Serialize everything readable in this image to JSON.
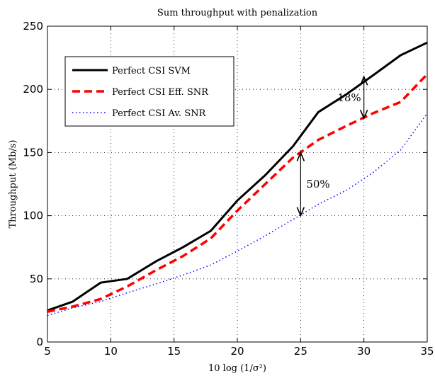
{
  "chart_data": {
    "type": "line",
    "title": "Sum throughput with penalization",
    "xlabel": "10 log (1/σ²)",
    "ylabel": "Throughput (Mb/s)",
    "xlim": [
      5,
      35
    ],
    "ylim": [
      0,
      250
    ],
    "xticks": [
      5,
      10,
      15,
      20,
      25,
      30,
      35
    ],
    "yticks": [
      0,
      50,
      100,
      150,
      200,
      250
    ],
    "grid": true,
    "legend_position": "top-left",
    "series": [
      {
        "name": "Perfect CSI SVM",
        "color": "#000000",
        "style": "solid",
        "x": [
          5,
          7,
          9.2,
          11.3,
          13.6,
          15.7,
          17.9,
          20,
          22.2,
          24.4,
          26.4,
          28.6,
          30.7,
          32.9,
          35
        ],
        "y": [
          25,
          32,
          47,
          50,
          64,
          75,
          88,
          112,
          132,
          155,
          182,
          196,
          211,
          227,
          237
        ]
      },
      {
        "name": "Perfect CSI Eff. SNR",
        "color": "#ff0000",
        "style": "dashed",
        "x": [
          5,
          7,
          9.2,
          11.3,
          13.6,
          15.7,
          17.9,
          20,
          22.2,
          24.4,
          26.4,
          28.6,
          30.7,
          32.9,
          35
        ],
        "y": [
          24,
          28,
          34,
          44,
          57,
          68,
          82,
          104,
          125,
          146,
          160,
          171,
          181,
          190,
          212
        ]
      },
      {
        "name": "Perfect CSI Av. SNR",
        "color": "#0000ff",
        "style": "dotted",
        "x": [
          5,
          7,
          9.2,
          11.3,
          13.6,
          15.7,
          17.9,
          20,
          22.2,
          24.4,
          26.4,
          28.6,
          30.7,
          32.9,
          35
        ],
        "y": [
          21,
          27,
          32,
          39,
          46,
          53,
          61,
          72,
          84,
          97,
          109,
          120,
          134,
          152,
          181
        ]
      }
    ],
    "annotations": [
      {
        "label": "18%",
        "x": 30,
        "y_top": 210,
        "y_bottom": 177
      },
      {
        "label": "50%",
        "x": 25,
        "y_top": 150,
        "y_bottom": 100
      }
    ]
  }
}
